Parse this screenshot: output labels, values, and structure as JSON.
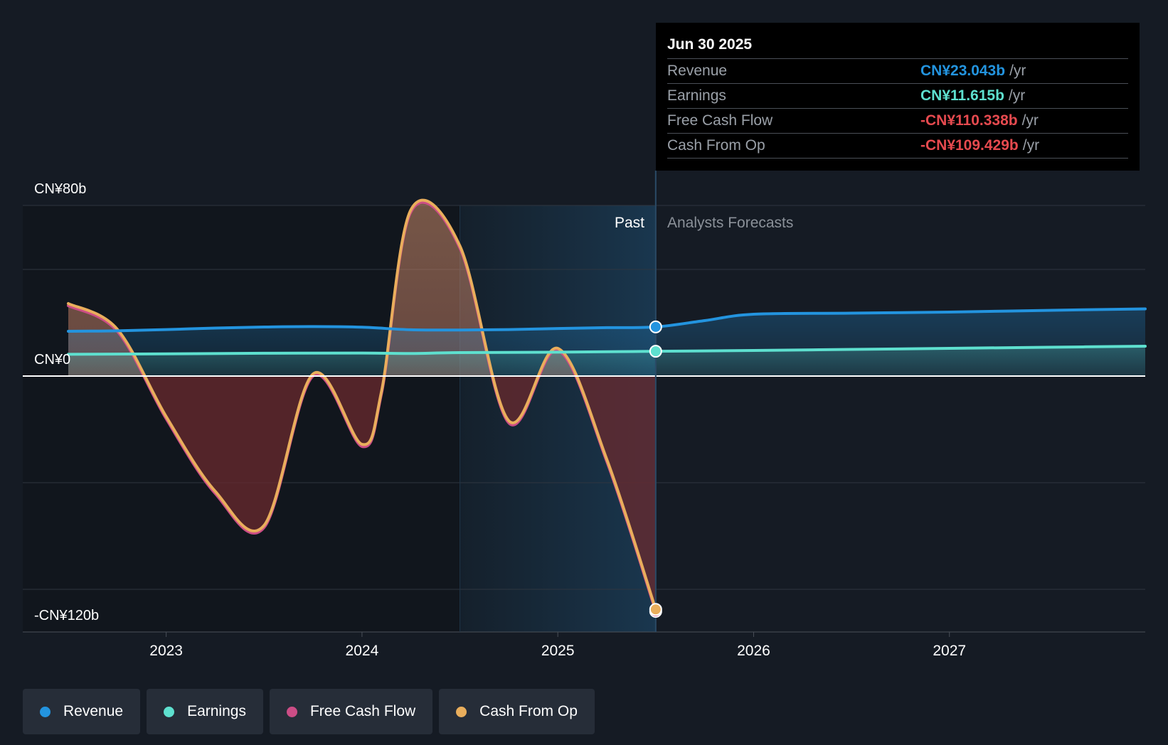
{
  "colors": {
    "background": "#151b24",
    "revenue": "#2394df",
    "earnings": "#5ee0cf",
    "free_cash_flow": "#cc4d86",
    "cash_from_op": "#e9ae5c",
    "negative": "#e64a4f",
    "grid": "#2f3640"
  },
  "chart_data": {
    "type": "area",
    "y_labels": {
      "top": "CN¥80b",
      "zero": "CN¥0",
      "bottom": "-CN¥120b"
    },
    "ylim": [
      -120,
      80
    ],
    "xlim": [
      2022.5,
      2028.0
    ],
    "x_ticks": [
      "2023",
      "2024",
      "2025",
      "2026",
      "2027"
    ],
    "x_tick_values": [
      2023,
      2024,
      2025,
      2026,
      2027
    ],
    "region_labels": {
      "past": "Past",
      "forecast": "Analysts Forecasts"
    },
    "past_shade_start": 2024.5,
    "divider_x": 2025.5,
    "series": [
      {
        "name": "Revenue",
        "x": [
          2022.5,
          2022.75,
          2023.0,
          2023.25,
          2023.5,
          2023.75,
          2024.0,
          2024.25,
          2024.5,
          2024.75,
          2025.0,
          2025.25,
          2025.5,
          2025.75,
          2026.0,
          2026.5,
          2027.0,
          2027.5,
          2028.0
        ],
        "y": [
          21.0,
          21.2,
          21.8,
          22.5,
          23.0,
          23.2,
          22.9,
          21.7,
          21.6,
          21.8,
          22.3,
          22.7,
          23.043,
          26.0,
          29.0,
          29.5,
          30.0,
          30.8,
          31.5
        ]
      },
      {
        "name": "Earnings",
        "x": [
          2022.5,
          2023.0,
          2023.5,
          2024.0,
          2024.25,
          2024.5,
          2025.0,
          2025.5,
          2026.0,
          2026.5,
          2027.0,
          2027.5,
          2028.0
        ],
        "y": [
          10.2,
          10.4,
          10.7,
          10.8,
          10.6,
          11.0,
          11.2,
          11.615,
          12.0,
          12.5,
          13.0,
          13.5,
          14.0
        ]
      },
      {
        "name": "Free Cash Flow",
        "x": [
          2022.5,
          2022.75,
          2023.0,
          2023.25,
          2023.5,
          2023.75,
          2024.0,
          2024.1,
          2024.25,
          2024.5,
          2024.75,
          2025.0,
          2025.25,
          2025.5
        ],
        "y": [
          33,
          21,
          -20,
          -55,
          -71,
          0,
          -33,
          -8,
          77,
          60,
          -22,
          12,
          -40,
          -110.338
        ]
      },
      {
        "name": "Cash From Op",
        "x": [
          2022.5,
          2022.75,
          2023.0,
          2023.25,
          2023.5,
          2023.75,
          2024.0,
          2024.1,
          2024.25,
          2024.5,
          2024.75,
          2025.0,
          2025.25,
          2025.5
        ],
        "y": [
          34,
          22,
          -19,
          -54,
          -70,
          1,
          -32,
          -7,
          78,
          61,
          -21,
          13,
          -39,
          -109.429
        ]
      }
    ]
  },
  "tooltip": {
    "date": "Jun 30 2025",
    "rows": [
      {
        "label": "Revenue",
        "value": "CN¥23.043b",
        "unit": "/yr",
        "color": "#2394df"
      },
      {
        "label": "Earnings",
        "value": "CN¥11.615b",
        "unit": "/yr",
        "color": "#5ee0cf"
      },
      {
        "label": "Free Cash Flow",
        "value": "-CN¥110.338b",
        "unit": "/yr",
        "color": "#e64a4f"
      },
      {
        "label": "Cash From Op",
        "value": "-CN¥109.429b",
        "unit": "/yr",
        "color": "#e64a4f"
      }
    ]
  },
  "legend": [
    {
      "label": "Revenue",
      "color": "#2394df"
    },
    {
      "label": "Earnings",
      "color": "#5ee0cf"
    },
    {
      "label": "Free Cash Flow",
      "color": "#cc4d86"
    },
    {
      "label": "Cash From Op",
      "color": "#e9ae5c"
    }
  ]
}
